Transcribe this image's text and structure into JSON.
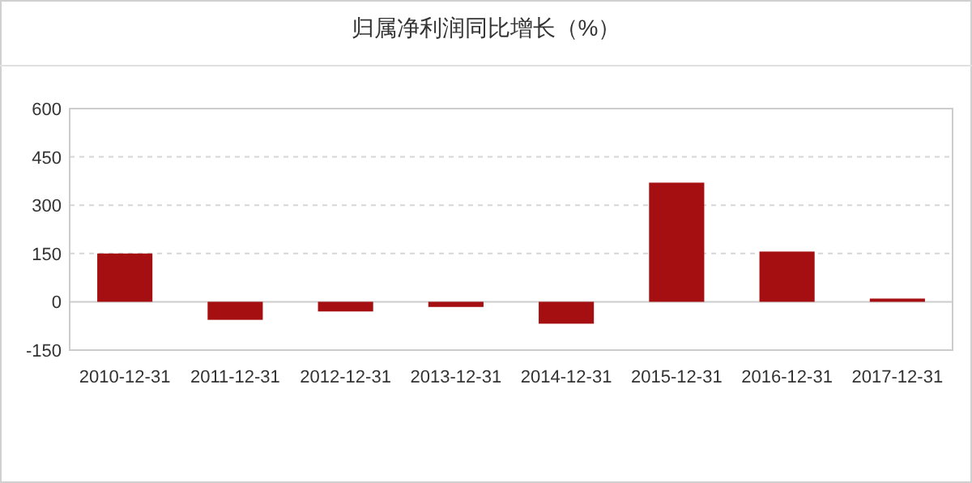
{
  "chart_data": {
    "type": "bar",
    "title": "归属净利润同比增长（%）",
    "categories": [
      "2010-12-31",
      "2011-12-31",
      "2012-12-31",
      "2013-12-31",
      "2014-12-31",
      "2015-12-31",
      "2016-12-31",
      "2017-12-31"
    ],
    "values": [
      150,
      -56,
      -30,
      -16,
      -68,
      370,
      156,
      10
    ],
    "color": "#a50f12",
    "ylim": [
      -150,
      600
    ],
    "yticks": [
      -150,
      0,
      150,
      300,
      450,
      600
    ],
    "grid": "y"
  }
}
